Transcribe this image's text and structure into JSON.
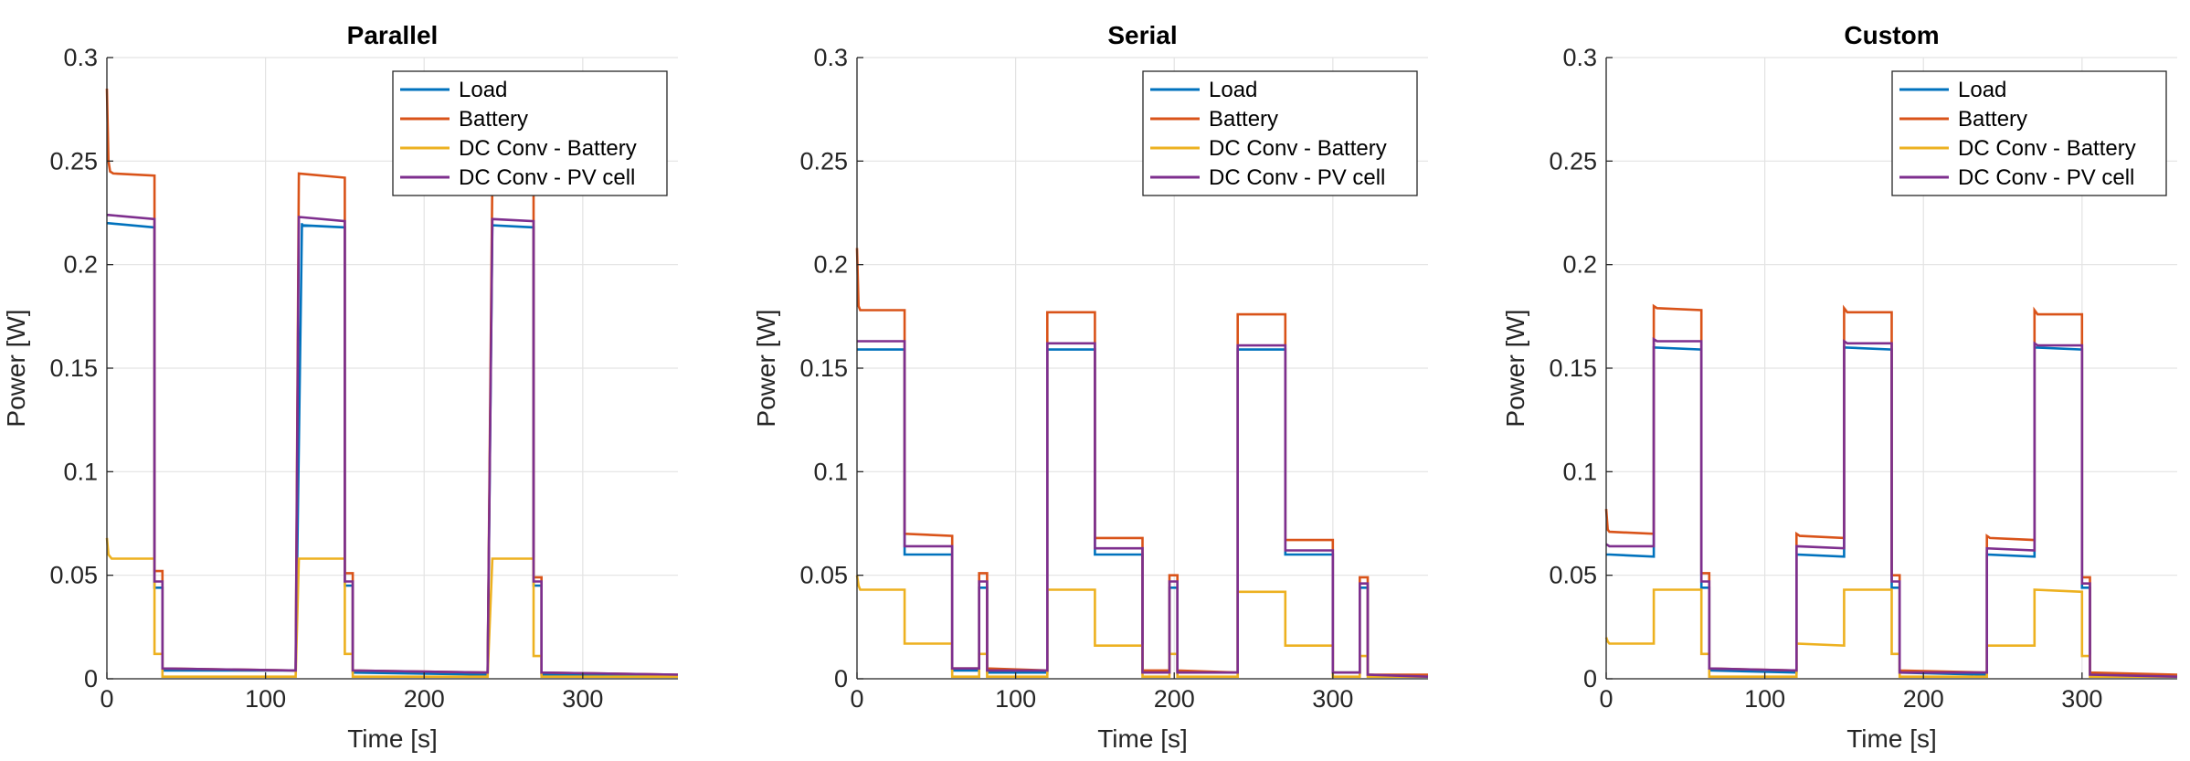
{
  "chart_data": [
    {
      "type": "line",
      "title": "Parallel",
      "xlabel": "Time [s]",
      "ylabel": "Power [W]",
      "xlim": [
        0,
        360
      ],
      "ylim": [
        0,
        0.3
      ],
      "xticks": [
        0,
        100,
        200,
        300
      ],
      "yticks": [
        0,
        0.05,
        0.1,
        0.15,
        0.2,
        0.25,
        0.3
      ],
      "grid": true,
      "legend_position": "top-right",
      "series": [
        {
          "name": "Load",
          "color": "#0072BD",
          "x": [
            0,
            1,
            30,
            30,
            35,
            35,
            40,
            40,
            119,
            119,
            123,
            123,
            150,
            150,
            155,
            155,
            240,
            240,
            243,
            243,
            269,
            269,
            274,
            274,
            360
          ],
          "y": [
            0.22,
            0.22,
            0.218,
            0.044,
            0.044,
            0.004,
            0.004,
            0.004,
            0.004,
            0.004,
            0.22,
            0.219,
            0.218,
            0.045,
            0.045,
            0.003,
            0.002,
            0.002,
            0.219,
            0.219,
            0.218,
            0.045,
            0.045,
            0.002,
            0.001
          ]
        },
        {
          "name": "Battery",
          "color": "#D95319",
          "x": [
            0,
            1,
            2,
            4,
            30,
            30,
            35,
            35,
            119,
            119,
            121,
            150,
            150,
            155,
            155,
            240,
            240,
            243,
            269,
            269,
            274,
            274,
            360
          ],
          "y": [
            0.285,
            0.25,
            0.245,
            0.244,
            0.243,
            0.052,
            0.052,
            0.005,
            0.004,
            0.004,
            0.244,
            0.242,
            0.051,
            0.051,
            0.004,
            0.003,
            0.003,
            0.243,
            0.242,
            0.049,
            0.049,
            0.003,
            0.002
          ]
        },
        {
          "name": "DC Conv - Battery",
          "color": "#EDB120",
          "x": [
            0,
            1,
            3,
            30,
            30,
            35,
            35,
            119,
            119,
            121,
            150,
            150,
            155,
            155,
            240,
            240,
            243,
            269,
            269,
            274,
            274,
            360
          ],
          "y": [
            0.068,
            0.06,
            0.058,
            0.058,
            0.012,
            0.012,
            0.001,
            0.001,
            0.001,
            0.058,
            0.058,
            0.012,
            0.012,
            0.001,
            0.001,
            0.001,
            0.058,
            0.058,
            0.011,
            0.011,
            0.001,
            0.001
          ]
        },
        {
          "name": "DC Conv - PV cell",
          "color": "#7E2F8E",
          "x": [
            0,
            1,
            30,
            30,
            35,
            35,
            119,
            119,
            121,
            150,
            150,
            155,
            155,
            240,
            240,
            243,
            269,
            269,
            274,
            274,
            360
          ],
          "y": [
            0.224,
            0.224,
            0.222,
            0.047,
            0.047,
            0.005,
            0.004,
            0.004,
            0.223,
            0.221,
            0.047,
            0.047,
            0.004,
            0.003,
            0.003,
            0.222,
            0.221,
            0.047,
            0.047,
            0.003,
            0.002
          ]
        }
      ]
    },
    {
      "type": "line",
      "title": "Serial",
      "xlabel": "Time [s]",
      "ylabel": "Power [W]",
      "xlim": [
        0,
        360
      ],
      "ylim": [
        0,
        0.3
      ],
      "xticks": [
        0,
        100,
        200,
        300
      ],
      "yticks": [
        0,
        0.05,
        0.1,
        0.15,
        0.2,
        0.25,
        0.3
      ],
      "grid": true,
      "legend_position": "top-right",
      "series": [
        {
          "name": "Load",
          "color": "#0072BD",
          "x": [
            0,
            30,
            30,
            60,
            60,
            77,
            77,
            82,
            82,
            120,
            120,
            150,
            150,
            180,
            180,
            197,
            197,
            202,
            202,
            240,
            240,
            270,
            270,
            300,
            300,
            317,
            317,
            322,
            322,
            360
          ],
          "y": [
            0.159,
            0.159,
            0.06,
            0.06,
            0.004,
            0.004,
            0.044,
            0.044,
            0.003,
            0.003,
            0.159,
            0.159,
            0.06,
            0.06,
            0.003,
            0.003,
            0.044,
            0.044,
            0.003,
            0.003,
            0.159,
            0.159,
            0.06,
            0.06,
            0.003,
            0.003,
            0.044,
            0.044,
            0.002,
            0.001
          ]
        },
        {
          "name": "Battery",
          "color": "#D95319",
          "x": [
            0,
            1,
            2,
            30,
            30,
            60,
            60,
            77,
            77,
            82,
            82,
            120,
            120,
            150,
            150,
            180,
            180,
            197,
            197,
            202,
            202,
            240,
            240,
            270,
            270,
            300,
            300,
            317,
            317,
            322,
            322,
            360
          ],
          "y": [
            0.208,
            0.18,
            0.178,
            0.178,
            0.07,
            0.069,
            0.005,
            0.005,
            0.051,
            0.051,
            0.005,
            0.004,
            0.177,
            0.177,
            0.068,
            0.068,
            0.004,
            0.004,
            0.05,
            0.05,
            0.004,
            0.003,
            0.176,
            0.176,
            0.067,
            0.067,
            0.003,
            0.003,
            0.049,
            0.049,
            0.002,
            0.002
          ]
        },
        {
          "name": "DC Conv - Battery",
          "color": "#EDB120",
          "x": [
            0,
            1,
            2,
            30,
            30,
            60,
            60,
            77,
            77,
            82,
            82,
            120,
            120,
            150,
            150,
            180,
            180,
            197,
            197,
            202,
            202,
            240,
            240,
            270,
            270,
            300,
            300,
            317,
            317,
            322,
            322,
            360
          ],
          "y": [
            0.05,
            0.045,
            0.043,
            0.043,
            0.017,
            0.017,
            0.001,
            0.001,
            0.012,
            0.012,
            0.001,
            0.001,
            0.043,
            0.043,
            0.016,
            0.016,
            0.001,
            0.001,
            0.012,
            0.012,
            0.001,
            0.001,
            0.042,
            0.042,
            0.016,
            0.016,
            0.001,
            0.001,
            0.011,
            0.011,
            0.001,
            0.001
          ]
        },
        {
          "name": "DC Conv - PV cell",
          "color": "#7E2F8E",
          "x": [
            0,
            30,
            30,
            60,
            60,
            77,
            77,
            82,
            82,
            120,
            120,
            150,
            150,
            180,
            180,
            197,
            197,
            202,
            202,
            240,
            240,
            270,
            270,
            300,
            300,
            317,
            317,
            322,
            322,
            360
          ],
          "y": [
            0.163,
            0.163,
            0.064,
            0.064,
            0.005,
            0.005,
            0.047,
            0.047,
            0.004,
            0.004,
            0.162,
            0.162,
            0.063,
            0.063,
            0.003,
            0.003,
            0.047,
            0.047,
            0.003,
            0.003,
            0.161,
            0.161,
            0.062,
            0.062,
            0.003,
            0.003,
            0.046,
            0.046,
            0.002,
            0.001
          ]
        }
      ]
    },
    {
      "type": "line",
      "title": "Custom",
      "xlabel": "Time [s]",
      "ylabel": "Power [W]",
      "xlim": [
        0,
        360
      ],
      "ylim": [
        0,
        0.3
      ],
      "xticks": [
        0,
        100,
        200,
        300
      ],
      "yticks": [
        0,
        0.05,
        0.1,
        0.15,
        0.2,
        0.25,
        0.3
      ],
      "grid": true,
      "legend_position": "top-right",
      "series": [
        {
          "name": "Load",
          "color": "#0072BD",
          "x": [
            0,
            2,
            30,
            30,
            60,
            60,
            65,
            65,
            120,
            120,
            150,
            150,
            180,
            180,
            185,
            185,
            240,
            240,
            270,
            270,
            300,
            300,
            305,
            305,
            360
          ],
          "y": [
            0.06,
            0.06,
            0.059,
            0.16,
            0.159,
            0.044,
            0.044,
            0.004,
            0.003,
            0.06,
            0.059,
            0.16,
            0.159,
            0.044,
            0.044,
            0.003,
            0.002,
            0.06,
            0.059,
            0.16,
            0.159,
            0.044,
            0.044,
            0.002,
            0.001
          ]
        },
        {
          "name": "Battery",
          "color": "#D95319",
          "x": [
            0,
            1,
            2,
            30,
            30,
            32,
            60,
            60,
            65,
            65,
            120,
            120,
            122,
            150,
            150,
            152,
            180,
            180,
            185,
            185,
            240,
            240,
            242,
            270,
            270,
            272,
            300,
            300,
            305,
            305,
            360
          ],
          "y": [
            0.082,
            0.072,
            0.071,
            0.07,
            0.18,
            0.179,
            0.178,
            0.051,
            0.051,
            0.005,
            0.004,
            0.07,
            0.069,
            0.068,
            0.179,
            0.177,
            0.177,
            0.05,
            0.05,
            0.004,
            0.003,
            0.069,
            0.068,
            0.067,
            0.178,
            0.176,
            0.176,
            0.049,
            0.049,
            0.003,
            0.002
          ]
        },
        {
          "name": "DC Conv - Battery",
          "color": "#EDB120",
          "x": [
            0,
            1,
            2,
            30,
            30,
            60,
            60,
            65,
            65,
            120,
            120,
            150,
            150,
            180,
            180,
            185,
            185,
            240,
            240,
            270,
            270,
            300,
            300,
            305,
            305,
            360
          ],
          "y": [
            0.02,
            0.018,
            0.017,
            0.017,
            0.043,
            0.043,
            0.012,
            0.012,
            0.001,
            0.001,
            0.017,
            0.016,
            0.043,
            0.043,
            0.012,
            0.012,
            0.001,
            0.001,
            0.016,
            0.016,
            0.043,
            0.042,
            0.011,
            0.011,
            0.001,
            0.001
          ]
        },
        {
          "name": "DC Conv - PV cell",
          "color": "#7E2F8E",
          "x": [
            0,
            2,
            30,
            30,
            32,
            60,
            60,
            65,
            65,
            120,
            120,
            150,
            150,
            152,
            180,
            180,
            185,
            185,
            240,
            240,
            270,
            270,
            272,
            300,
            300,
            305,
            305,
            360
          ],
          "y": [
            0.065,
            0.064,
            0.064,
            0.164,
            0.163,
            0.163,
            0.047,
            0.047,
            0.005,
            0.004,
            0.064,
            0.063,
            0.163,
            0.162,
            0.162,
            0.047,
            0.047,
            0.003,
            0.003,
            0.063,
            0.062,
            0.162,
            0.161,
            0.161,
            0.046,
            0.046,
            0.002,
            0.001
          ]
        }
      ]
    }
  ]
}
